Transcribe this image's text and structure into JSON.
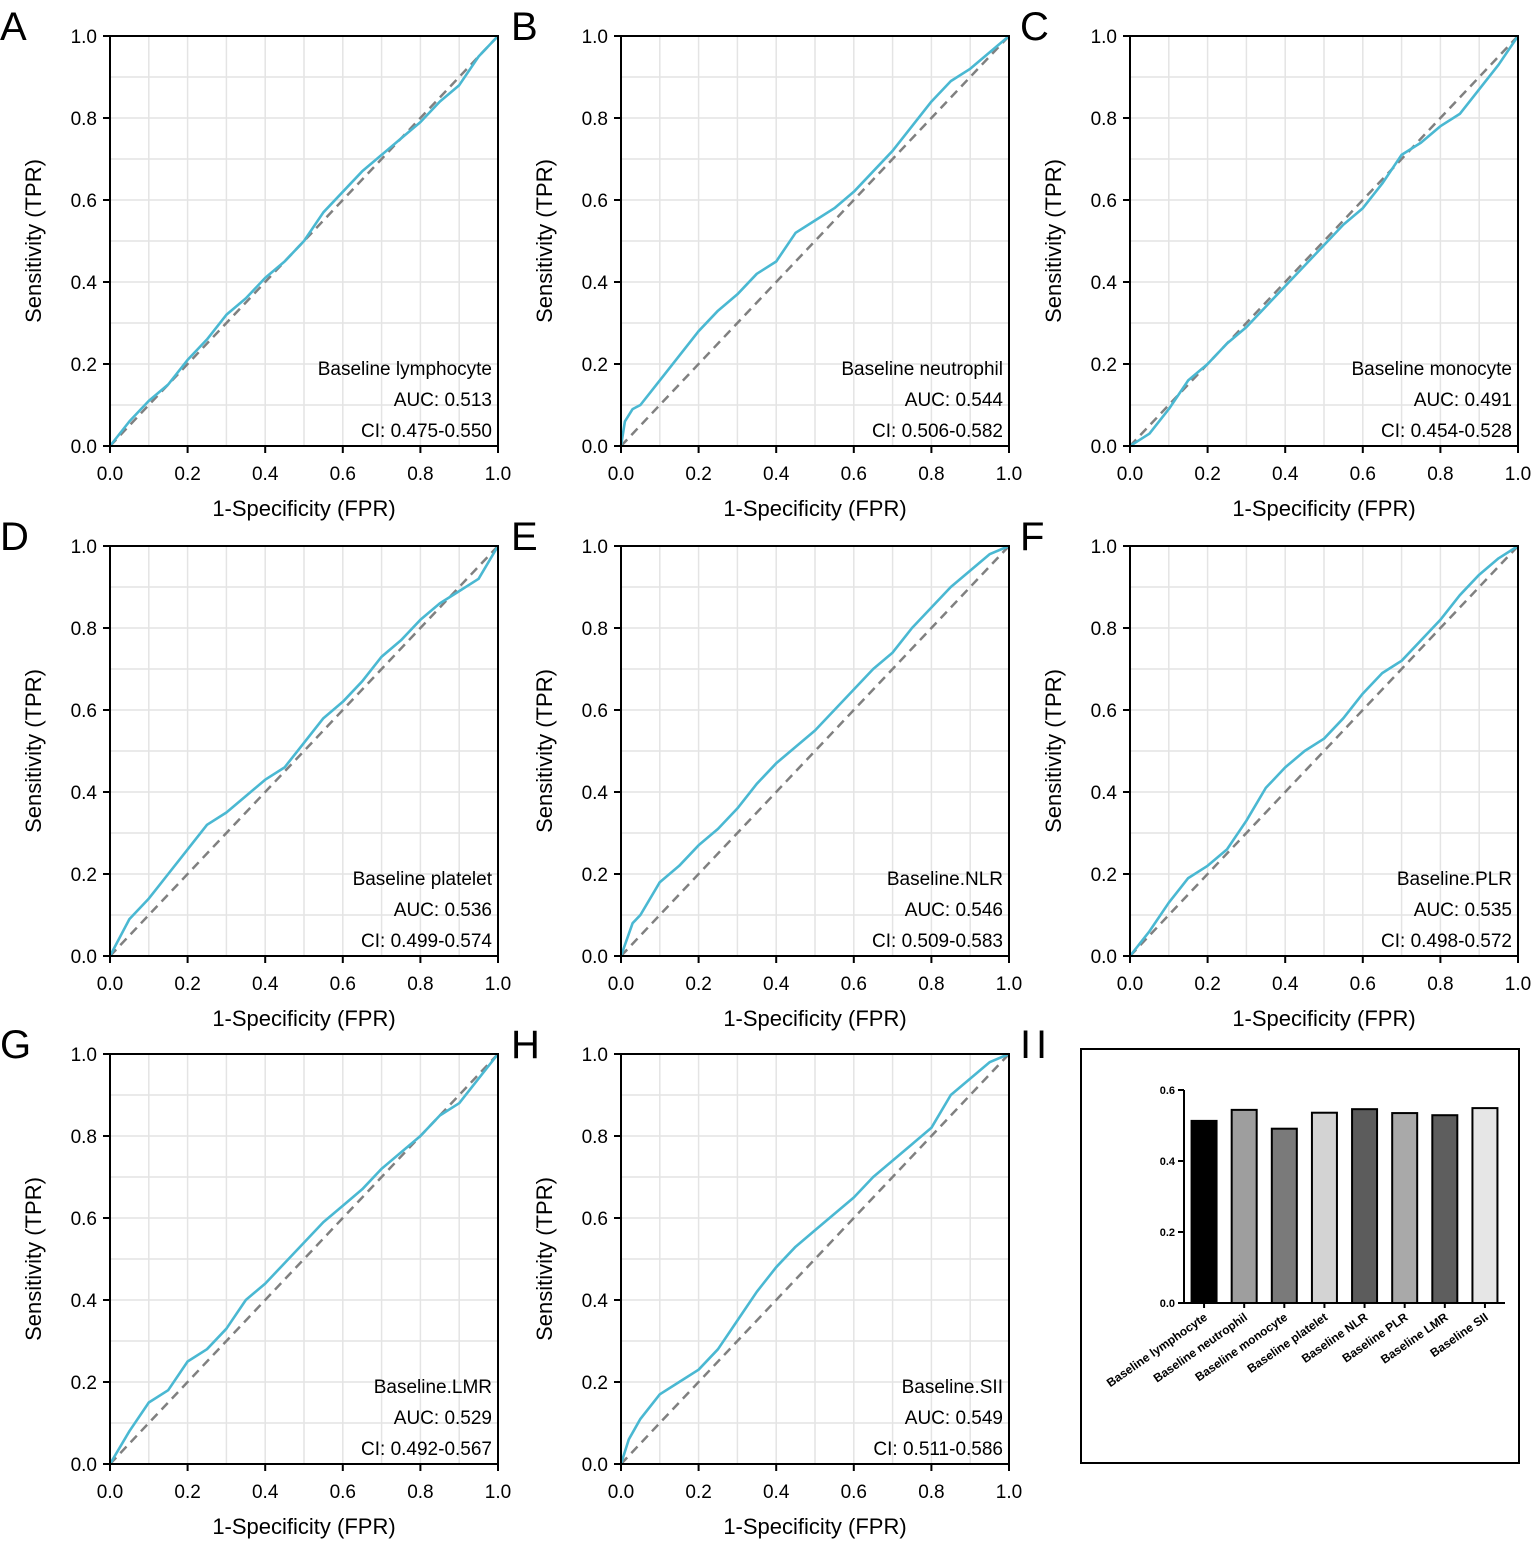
{
  "chart_data": [
    {
      "panel": "A",
      "type": "line",
      "xlabel": "1-Specificity (FPR)",
      "ylabel": "Sensitivity (TPR)",
      "xlim": [
        0,
        1
      ],
      "ylim": [
        0,
        1
      ],
      "x_ticks": [
        "0.0",
        "0.2",
        "0.4",
        "0.6",
        "0.8",
        "1.0"
      ],
      "y_ticks": [
        "0.0",
        "0.2",
        "0.4",
        "0.6",
        "0.8",
        "1.0"
      ],
      "annotation": {
        "name": "Baseline lymphocyte",
        "auc": "AUC: 0.513",
        "ci": "CI: 0.475-0.550"
      },
      "roc_x": [
        0,
        0.05,
        0.1,
        0.15,
        0.2,
        0.25,
        0.3,
        0.35,
        0.4,
        0.45,
        0.5,
        0.55,
        0.6,
        0.65,
        0.7,
        0.75,
        0.8,
        0.85,
        0.9,
        0.95,
        1
      ],
      "roc_y": [
        0,
        0.06,
        0.11,
        0.15,
        0.21,
        0.26,
        0.32,
        0.36,
        0.41,
        0.45,
        0.5,
        0.57,
        0.62,
        0.67,
        0.71,
        0.75,
        0.79,
        0.84,
        0.88,
        0.95,
        1
      ]
    },
    {
      "panel": "B",
      "type": "line",
      "xlabel": "1-Specificity (FPR)",
      "ylabel": "Sensitivity (TPR)",
      "xlim": [
        0,
        1
      ],
      "ylim": [
        0,
        1
      ],
      "x_ticks": [
        "0.0",
        "0.2",
        "0.4",
        "0.6",
        "0.8",
        "1.0"
      ],
      "y_ticks": [
        "0.0",
        "0.2",
        "0.4",
        "0.6",
        "0.8",
        "1.0"
      ],
      "annotation": {
        "name": "Baseline neutrophil",
        "auc": "AUC: 0.544",
        "ci": "CI: 0.506-0.582"
      },
      "roc_x": [
        0,
        0.01,
        0.03,
        0.05,
        0.1,
        0.15,
        0.2,
        0.25,
        0.3,
        0.35,
        0.4,
        0.45,
        0.5,
        0.55,
        0.6,
        0.65,
        0.7,
        0.75,
        0.8,
        0.85,
        0.9,
        0.95,
        1
      ],
      "roc_y": [
        0,
        0.06,
        0.09,
        0.1,
        0.16,
        0.22,
        0.28,
        0.33,
        0.37,
        0.42,
        0.45,
        0.52,
        0.55,
        0.58,
        0.62,
        0.67,
        0.72,
        0.78,
        0.84,
        0.89,
        0.92,
        0.96,
        1
      ]
    },
    {
      "panel": "C",
      "type": "line",
      "xlabel": "1-Specificity (FPR)",
      "ylabel": "Sensitivity (TPR)",
      "xlim": [
        0,
        1
      ],
      "ylim": [
        0,
        1
      ],
      "x_ticks": [
        "0.0",
        "0.2",
        "0.4",
        "0.6",
        "0.8",
        "1.0"
      ],
      "y_ticks": [
        "0.0",
        "0.2",
        "0.4",
        "0.6",
        "0.8",
        "1.0"
      ],
      "annotation": {
        "name": "Baseline monocyte",
        "auc": "AUC: 0.491",
        "ci": "CI: 0.454-0.528"
      },
      "roc_x": [
        0,
        0.05,
        0.1,
        0.15,
        0.2,
        0.25,
        0.3,
        0.35,
        0.4,
        0.45,
        0.5,
        0.55,
        0.6,
        0.65,
        0.7,
        0.75,
        0.8,
        0.85,
        0.9,
        0.95,
        1
      ],
      "roc_y": [
        0,
        0.03,
        0.09,
        0.16,
        0.2,
        0.25,
        0.29,
        0.34,
        0.39,
        0.44,
        0.49,
        0.54,
        0.58,
        0.64,
        0.71,
        0.74,
        0.78,
        0.81,
        0.87,
        0.93,
        1
      ]
    },
    {
      "panel": "D",
      "type": "line",
      "xlabel": "1-Specificity (FPR)",
      "ylabel": "Sensitivity (TPR)",
      "xlim": [
        0,
        1
      ],
      "ylim": [
        0,
        1
      ],
      "x_ticks": [
        "0.0",
        "0.2",
        "0.4",
        "0.6",
        "0.8",
        "1.0"
      ],
      "y_ticks": [
        "0.0",
        "0.2",
        "0.4",
        "0.6",
        "0.8",
        "1.0"
      ],
      "annotation": {
        "name": "Baseline platelet",
        "auc": "AUC: 0.536",
        "ci": "CI: 0.499-0.574"
      },
      "roc_x": [
        0,
        0.05,
        0.1,
        0.15,
        0.2,
        0.25,
        0.3,
        0.35,
        0.4,
        0.45,
        0.5,
        0.55,
        0.6,
        0.65,
        0.7,
        0.75,
        0.8,
        0.85,
        0.9,
        0.95,
        1
      ],
      "roc_y": [
        0,
        0.09,
        0.14,
        0.2,
        0.26,
        0.32,
        0.35,
        0.39,
        0.43,
        0.46,
        0.52,
        0.58,
        0.62,
        0.67,
        0.73,
        0.77,
        0.82,
        0.86,
        0.89,
        0.92,
        1
      ]
    },
    {
      "panel": "E",
      "type": "line",
      "xlabel": "1-Specificity (FPR)",
      "ylabel": "Sensitivity (TPR)",
      "xlim": [
        0,
        1
      ],
      "ylim": [
        0,
        1
      ],
      "x_ticks": [
        "0.0",
        "0.2",
        "0.4",
        "0.6",
        "0.8",
        "1.0"
      ],
      "y_ticks": [
        "0.0",
        "0.2",
        "0.4",
        "0.6",
        "0.8",
        "1.0"
      ],
      "annotation": {
        "name": "Baseline.NLR",
        "auc": "AUC: 0.546",
        "ci": "CI: 0.509-0.583"
      },
      "roc_x": [
        0,
        0.03,
        0.05,
        0.1,
        0.15,
        0.2,
        0.25,
        0.3,
        0.35,
        0.4,
        0.45,
        0.5,
        0.55,
        0.6,
        0.65,
        0.7,
        0.75,
        0.8,
        0.85,
        0.9,
        0.95,
        1
      ],
      "roc_y": [
        0,
        0.08,
        0.1,
        0.18,
        0.22,
        0.27,
        0.31,
        0.36,
        0.42,
        0.47,
        0.51,
        0.55,
        0.6,
        0.65,
        0.7,
        0.74,
        0.8,
        0.85,
        0.9,
        0.94,
        0.98,
        1
      ]
    },
    {
      "panel": "F",
      "type": "line",
      "xlabel": "1-Specificity (FPR)",
      "ylabel": "Sensitivity (TPR)",
      "xlim": [
        0,
        1
      ],
      "ylim": [
        0,
        1
      ],
      "x_ticks": [
        "0.0",
        "0.2",
        "0.4",
        "0.6",
        "0.8",
        "1.0"
      ],
      "y_ticks": [
        "0.0",
        "0.2",
        "0.4",
        "0.6",
        "0.8",
        "1.0"
      ],
      "annotation": {
        "name": "Baseline.PLR",
        "auc": "AUC: 0.535",
        "ci": "CI: 0.498-0.572"
      },
      "roc_x": [
        0,
        0.05,
        0.1,
        0.15,
        0.2,
        0.25,
        0.3,
        0.35,
        0.4,
        0.45,
        0.5,
        0.55,
        0.6,
        0.65,
        0.7,
        0.75,
        0.8,
        0.85,
        0.9,
        0.95,
        1
      ],
      "roc_y": [
        0,
        0.06,
        0.13,
        0.19,
        0.22,
        0.26,
        0.33,
        0.41,
        0.46,
        0.5,
        0.53,
        0.58,
        0.64,
        0.69,
        0.72,
        0.77,
        0.82,
        0.88,
        0.93,
        0.97,
        1
      ]
    },
    {
      "panel": "G",
      "type": "line",
      "xlabel": "1-Specificity (FPR)",
      "ylabel": "Sensitivity (TPR)",
      "xlim": [
        0,
        1
      ],
      "ylim": [
        0,
        1
      ],
      "x_ticks": [
        "0.0",
        "0.2",
        "0.4",
        "0.6",
        "0.8",
        "1.0"
      ],
      "y_ticks": [
        "0.0",
        "0.2",
        "0.4",
        "0.6",
        "0.8",
        "1.0"
      ],
      "annotation": {
        "name": "Baseline.LMR",
        "auc": "AUC: 0.529",
        "ci": "CI: 0.492-0.567"
      },
      "roc_x": [
        0,
        0.05,
        0.1,
        0.15,
        0.2,
        0.25,
        0.3,
        0.35,
        0.4,
        0.45,
        0.5,
        0.55,
        0.6,
        0.65,
        0.7,
        0.75,
        0.8,
        0.85,
        0.9,
        0.95,
        1
      ],
      "roc_y": [
        0,
        0.08,
        0.15,
        0.18,
        0.25,
        0.28,
        0.33,
        0.4,
        0.44,
        0.49,
        0.54,
        0.59,
        0.63,
        0.67,
        0.72,
        0.76,
        0.8,
        0.85,
        0.88,
        0.94,
        1
      ]
    },
    {
      "panel": "H",
      "type": "line",
      "xlabel": "1-Specificity (FPR)",
      "ylabel": "Sensitivity (TPR)",
      "xlim": [
        0,
        1
      ],
      "ylim": [
        0,
        1
      ],
      "x_ticks": [
        "0.0",
        "0.2",
        "0.4",
        "0.6",
        "0.8",
        "1.0"
      ],
      "y_ticks": [
        "0.0",
        "0.2",
        "0.4",
        "0.6",
        "0.8",
        "1.0"
      ],
      "annotation": {
        "name": "Baseline.SII",
        "auc": "AUC: 0.549",
        "ci": "CI: 0.511-0.586"
      },
      "roc_x": [
        0,
        0.02,
        0.05,
        0.1,
        0.15,
        0.2,
        0.25,
        0.3,
        0.35,
        0.4,
        0.45,
        0.5,
        0.55,
        0.6,
        0.65,
        0.7,
        0.75,
        0.8,
        0.85,
        0.9,
        0.95,
        1
      ],
      "roc_y": [
        0,
        0.06,
        0.11,
        0.17,
        0.2,
        0.23,
        0.28,
        0.35,
        0.42,
        0.48,
        0.53,
        0.57,
        0.61,
        0.65,
        0.7,
        0.74,
        0.78,
        0.82,
        0.9,
        0.94,
        0.98,
        1
      ]
    },
    {
      "panel": "I",
      "type": "bar",
      "categories": [
        "Baseline lymphocyte",
        "Baseline neutrophil",
        "Baseline monocyte",
        "Baseline platelet",
        "Baseline NLR",
        "Baseline PLR",
        "Baseline LMR",
        "Baseline SII"
      ],
      "values": [
        0.513,
        0.544,
        0.491,
        0.536,
        0.546,
        0.535,
        0.529,
        0.549
      ],
      "colors": [
        "#000000",
        "#9e9e9e",
        "#7a7a7a",
        "#d3d3d3",
        "#5c5c5c",
        "#a9a9a9",
        "#5e5e5e",
        "#e6e6e6"
      ],
      "ylim": [
        0,
        0.6
      ],
      "y_ticks": [
        "0.0",
        "0.2",
        "0.4",
        "0.6"
      ],
      "title": "",
      "xlabel": "",
      "ylabel": ""
    }
  ],
  "colors": {
    "roc_line": "#4ab8d2",
    "diagonal": "#808080",
    "grid": "#e4e4e4",
    "axis": "#000000"
  }
}
